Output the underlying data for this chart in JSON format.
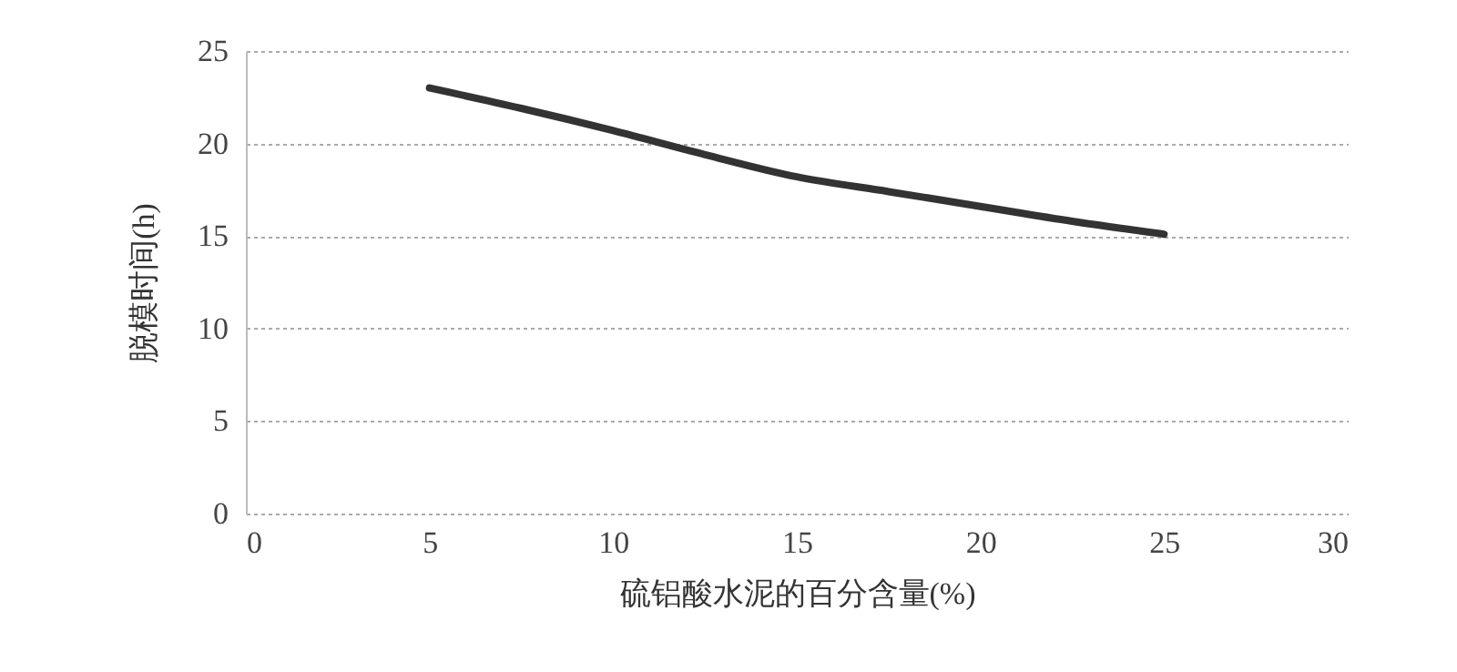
{
  "chart_data": {
    "type": "line",
    "xlabel": "硫铝酸水泥的百分含量(%)",
    "ylabel": "脱模时间(h)",
    "x": [
      5,
      7.5,
      10,
      12.5,
      15,
      17.5,
      20,
      22.5,
      25
    ],
    "series": [
      {
        "color": "#333333",
        "values": [
          23,
          21.9,
          20.7,
          19.4,
          18.2,
          17.4,
          16.6,
          15.8,
          15.1
        ]
      }
    ],
    "xlim": [
      0,
      30
    ],
    "xticks": [
      0,
      5,
      10,
      15,
      20,
      25,
      30
    ],
    "ylim": [
      0,
      25
    ],
    "yticks": [
      0,
      5,
      10,
      15,
      20,
      25
    ],
    "grid": "y",
    "marker": "none",
    "line_style": "solid",
    "legend": false
  }
}
